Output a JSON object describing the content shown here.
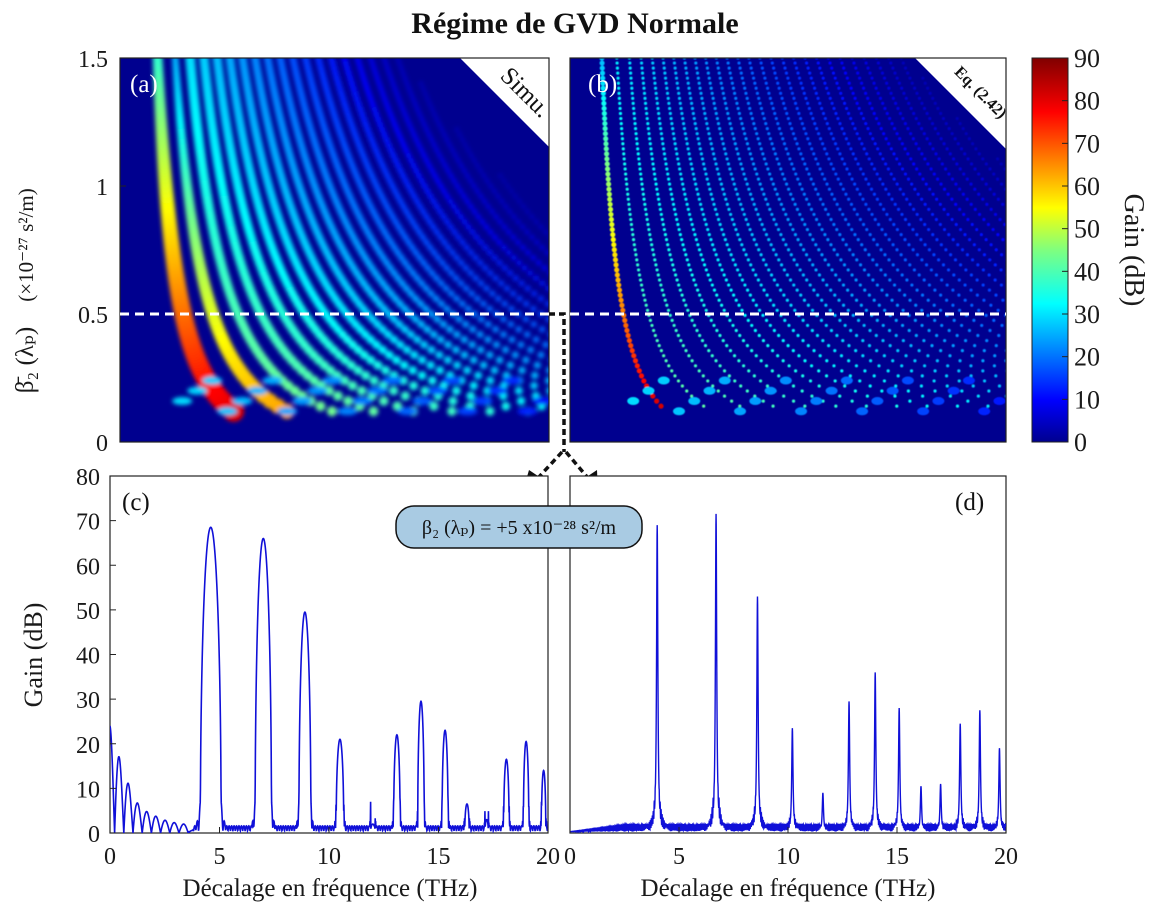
{
  "title": "Régime de GVD Normale",
  "colorbar": {
    "label": "Gain (dB)",
    "ticks": [
      "0",
      "10",
      "20",
      "30",
      "40",
      "50",
      "60",
      "70",
      "80",
      "90"
    ],
    "range": [
      0,
      90
    ],
    "colormap": "jet"
  },
  "callout": {
    "text": "β₂ (λₚ) = +5 x10⁻²⁸ s²/m",
    "fill": "#a9cbe3"
  },
  "accent_color": "#1010d8",
  "chart_data": [
    {
      "type": "heatmap",
      "panel": "(a)",
      "corner_label": "Simu.",
      "xlim": [
        0,
        20
      ],
      "ylim": [
        0,
        1.5
      ],
      "yticks": [
        "0",
        "0.5",
        "1",
        "1.5"
      ],
      "ylabel_main": "β̄₂ (λₚ)",
      "ylabel_unit": "(×10⁻²⁷ s²/m)",
      "marker_line_y": 0.5
    },
    {
      "type": "heatmap",
      "panel": "(b)",
      "corner_label": "Eq. (2.42)",
      "xlim": [
        0,
        20
      ],
      "ylim": [
        0,
        1.5
      ],
      "marker_line_y": 0.5
    },
    {
      "type": "line",
      "panel": "(c)",
      "xlim": [
        0,
        20
      ],
      "ylim": [
        0,
        80
      ],
      "xticks": [
        "0",
        "5",
        "10",
        "15",
        "20"
      ],
      "yticks": [
        "0",
        "10",
        "20",
        "30",
        "40",
        "50",
        "60",
        "70",
        "80"
      ],
      "xlabel": "Décalage en fréquence (THz)",
      "ylabel": "Gain (dB)",
      "floor": {
        "x": [
          0,
          0.35,
          0.8,
          1.2,
          1.6,
          2.0,
          2.4,
          2.8,
          3.2,
          3.6
        ],
        "y": [
          24,
          18,
          11.5,
          7,
          5,
          4,
          3,
          2.5,
          2,
          2
        ]
      },
      "peaks": [
        {
          "x": 4.6,
          "y": 68.5,
          "width": 0.95
        },
        {
          "x": 7.0,
          "y": 66,
          "width": 0.75
        },
        {
          "x": 8.9,
          "y": 49.5,
          "width": 0.55
        },
        {
          "x": 10.5,
          "y": 21,
          "width": 0.35
        },
        {
          "x": 12.0,
          "y": 2,
          "width": 0.2
        },
        {
          "x": 13.1,
          "y": 22,
          "width": 0.3
        },
        {
          "x": 14.2,
          "y": 29.5,
          "width": 0.3
        },
        {
          "x": 15.3,
          "y": 23,
          "width": 0.28
        },
        {
          "x": 16.3,
          "y": 6.5,
          "width": 0.2
        },
        {
          "x": 17.2,
          "y": 3,
          "width": 0.15
        },
        {
          "x": 18.1,
          "y": 16.5,
          "width": 0.25
        },
        {
          "x": 19.0,
          "y": 20.5,
          "width": 0.25
        },
        {
          "x": 19.8,
          "y": 14,
          "width": 0.2
        }
      ]
    },
    {
      "type": "line",
      "panel": "(d)",
      "xlim": [
        0,
        20
      ],
      "ylim": [
        0,
        80
      ],
      "xticks": [
        "0",
        "5",
        "10",
        "15",
        "20"
      ],
      "xlabel": "Décalage en fréquence (THz)",
      "peaks": [
        {
          "x": 4.0,
          "y": 69
        },
        {
          "x": 6.7,
          "y": 71.5
        },
        {
          "x": 8.6,
          "y": 53
        },
        {
          "x": 10.2,
          "y": 23.5
        },
        {
          "x": 11.6,
          "y": 9
        },
        {
          "x": 12.8,
          "y": 29.5
        },
        {
          "x": 14.0,
          "y": 36
        },
        {
          "x": 15.1,
          "y": 28
        },
        {
          "x": 16.1,
          "y": 10.5
        },
        {
          "x": 17.0,
          "y": 11
        },
        {
          "x": 17.9,
          "y": 24.5
        },
        {
          "x": 18.8,
          "y": 27.5
        },
        {
          "x": 19.7,
          "y": 19
        }
      ]
    }
  ]
}
